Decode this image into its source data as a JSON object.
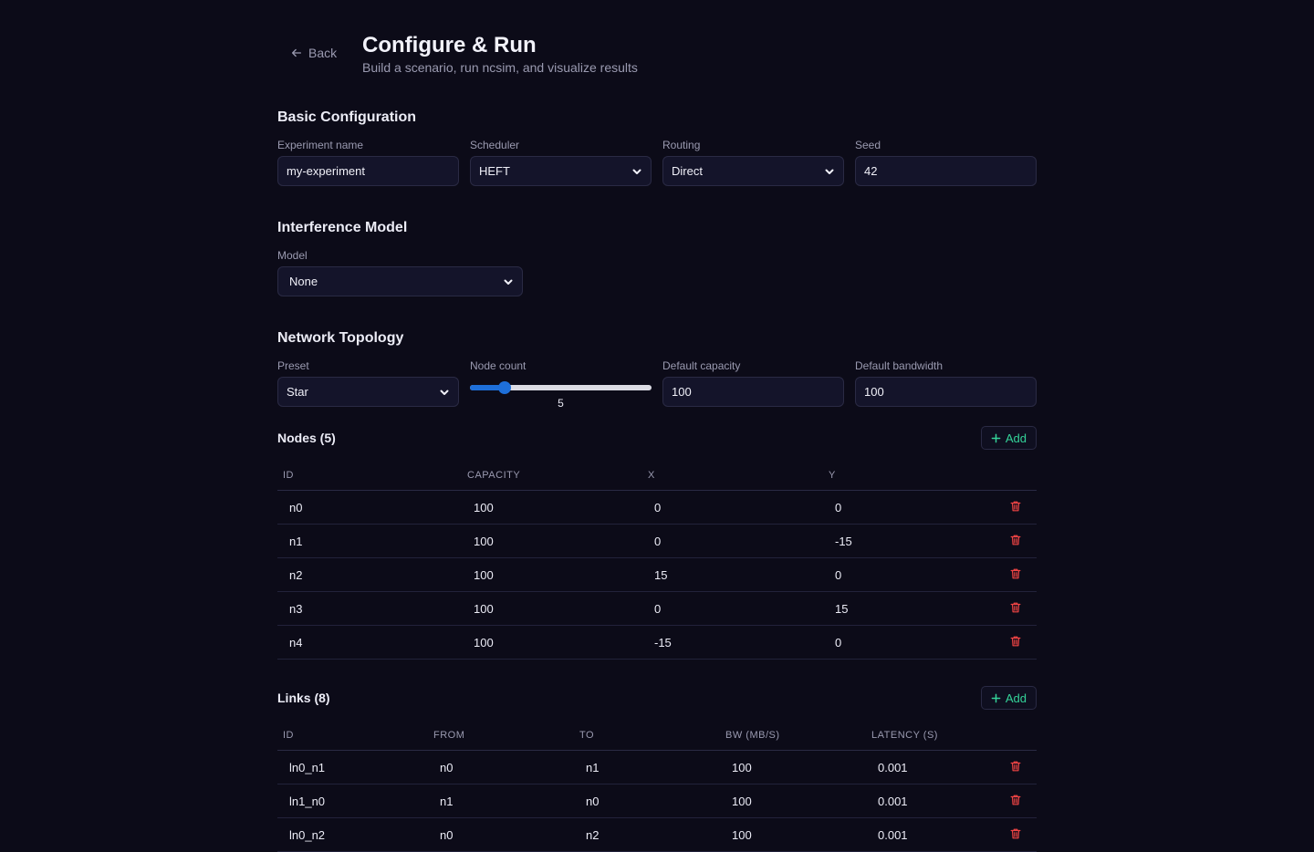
{
  "header": {
    "back_label": "Back",
    "title": "Configure & Run",
    "subtitle": "Build a scenario, run ncsim, and visualize results"
  },
  "basic": {
    "title": "Basic Configuration",
    "experiment_label": "Experiment name",
    "experiment_value": "my-experiment",
    "scheduler_label": "Scheduler",
    "scheduler_value": "HEFT",
    "routing_label": "Routing",
    "routing_value": "Direct",
    "seed_label": "Seed",
    "seed_value": "42"
  },
  "interference": {
    "title": "Interference Model",
    "model_label": "Model",
    "model_value": "None"
  },
  "topology": {
    "title": "Network Topology",
    "preset_label": "Preset",
    "preset_value": "Star",
    "node_count_label": "Node count",
    "node_count_value": "5",
    "node_count_fraction": 0.19,
    "capacity_label": "Default capacity",
    "capacity_value": "100",
    "bandwidth_label": "Default bandwidth",
    "bandwidth_value": "100"
  },
  "nodes": {
    "title": "Nodes (5)",
    "add_label": "Add",
    "columns": [
      "ID",
      "CAPACITY",
      "X",
      "Y"
    ],
    "rows": [
      [
        "n0",
        "100",
        "0",
        "0"
      ],
      [
        "n1",
        "100",
        "0",
        "-15"
      ],
      [
        "n2",
        "100",
        "15",
        "0"
      ],
      [
        "n3",
        "100",
        "0",
        "15"
      ],
      [
        "n4",
        "100",
        "-15",
        "0"
      ]
    ]
  },
  "links": {
    "title": "Links (8)",
    "add_label": "Add",
    "columns": [
      "ID",
      "FROM",
      "TO",
      "BW (MB/S)",
      "LATENCY (S)"
    ],
    "rows": [
      [
        "ln0_n1",
        "n0",
        "n1",
        "100",
        "0.001"
      ],
      [
        "ln1_n0",
        "n1",
        "n0",
        "100",
        "0.001"
      ],
      [
        "ln0_n2",
        "n0",
        "n2",
        "100",
        "0.001"
      ]
    ]
  },
  "colors": {
    "background": "#0c0b18",
    "accent_green": "#34d399",
    "danger_red": "#ef4444",
    "slider_blue": "#1e6fd9"
  }
}
